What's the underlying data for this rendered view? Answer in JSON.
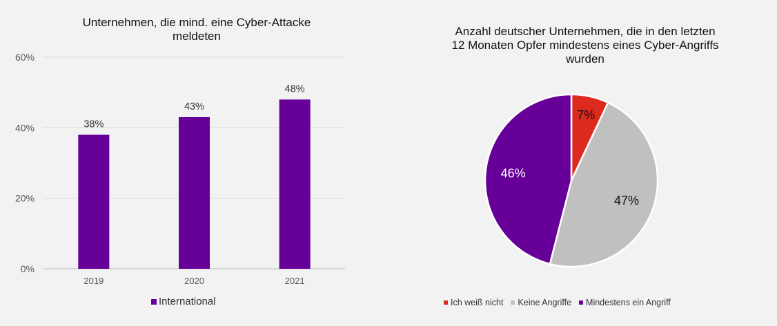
{
  "chart_data": [
    {
      "type": "bar",
      "title": "Unternehmen, die mind. eine Cyber-Attacke meldeten",
      "title_lines": [
        "Unternehmen, die mind. eine Cyber-Attacke",
        "meldeten"
      ],
      "categories": [
        "2019",
        "2020",
        "2021"
      ],
      "series": [
        {
          "name": "International",
          "values": [
            38,
            43,
            48
          ],
          "color": "#660099"
        }
      ],
      "data_labels": [
        "38%",
        "43%",
        "48%"
      ],
      "y_ticks": [
        0,
        20,
        40,
        60
      ],
      "y_tick_labels": [
        "0%",
        "20%",
        "40%",
        "60%"
      ],
      "ylim": [
        0,
        60
      ],
      "grid": true,
      "legend_position": "bottom"
    },
    {
      "type": "pie",
      "title": "Anzahl deutscher Unternehmen, die in den letzten 12 Monaten Opfer mindestens eines Cyber-Angriffs wurden",
      "title_lines": [
        "Anzahl deutscher Unternehmen, die in den letzten",
        "12 Monaten Opfer mindestens eines Cyber-Angriffs",
        "wurden"
      ],
      "slices": [
        {
          "label": "Ich weiß nicht",
          "value": 7,
          "display": "7%",
          "color": "#dd2a1e",
          "label_color": "#111111"
        },
        {
          "label": "Keine Angriffe",
          "value": 47,
          "display": "47%",
          "color": "#c0c0c0",
          "label_color": "#111111"
        },
        {
          "label": "Mindestens ein Angriff",
          "value": 46,
          "display": "46%",
          "color": "#660099",
          "label_color": "#ffffff"
        }
      ],
      "legend_position": "bottom"
    }
  ]
}
